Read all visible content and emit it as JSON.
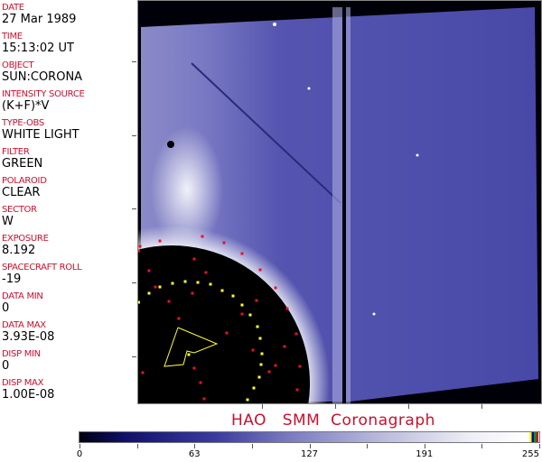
{
  "header_fields": [
    {
      "label": "DATE",
      "value": "27 Mar 1989"
    },
    {
      "label": "TIME",
      "value": "15:13:02 UT"
    },
    {
      "label": "OBJECT",
      "value": "SUN:CORONA"
    },
    {
      "label": "INTENSITY SOURCE",
      "value": "(K+F)*V"
    },
    {
      "label": "TYPE-OBS",
      "value": "WHITE LIGHT"
    },
    {
      "label": "FILTER",
      "value": "GREEN"
    },
    {
      "label": "POLAROID",
      "value": "CLEAR"
    },
    {
      "label": "SECTOR",
      "value": "W"
    },
    {
      "label": "EXPOSURE",
      "value": "8.192"
    },
    {
      "label": "SPACECRAFT ROLL",
      "value": "-19"
    },
    {
      "label": "DATA MIN",
      "value": "0"
    },
    {
      "label": "DATA MAX",
      "value": "3.93E-08"
    },
    {
      "label": "DISP MIN",
      "value": "0"
    },
    {
      "label": "DISP MAX",
      "value": "1.00E-08"
    }
  ],
  "title": "HAO   SMM  Coronagraph",
  "colorbar": {
    "tick_labels": [
      "0",
      "63",
      "127",
      "191",
      "255"
    ],
    "colors": {
      "low": "#000010",
      "mid": "#3c3ca0",
      "high": "#ffffff"
    },
    "marker_colors": [
      "#ffff00",
      "#0000c0",
      "#00a000",
      "#c8102e"
    ]
  },
  "colors": {
    "label": "#c8102e",
    "overlay_red": "#e8102e",
    "overlay_yellow": "#ffff30"
  }
}
